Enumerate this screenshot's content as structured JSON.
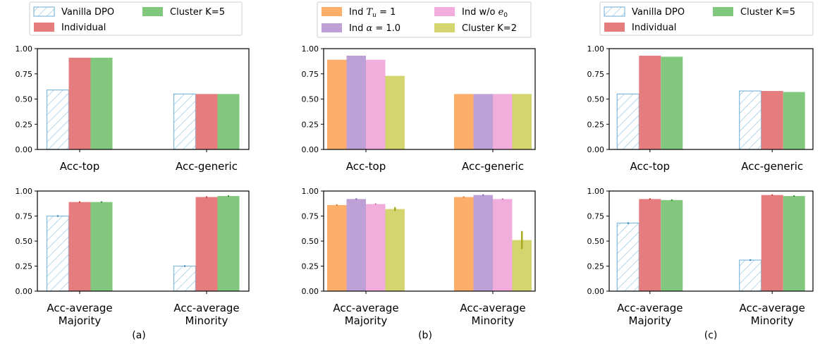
{
  "colors": {
    "vanilla": "#6baed6",
    "individual": "#e57c7e",
    "cluster5": "#81c77e",
    "ind_tu": "#fdae6b",
    "ind_alpha": "#bda0d6",
    "ind_wo_e0": "#f1aedc",
    "cluster2": "#d4d56e",
    "errbar_blue": "#1f77b4",
    "errbar_red": "#c0392b",
    "errbar_green": "#2e8b2e",
    "errbar_orange": "#d07a2b",
    "errbar_purple": "#7b5ea7",
    "errbar_pink": "#c56fa9",
    "errbar_olive": "#a9aa1f"
  },
  "panels": [
    {
      "label": "(a)",
      "legend": [
        "Vanilla DPO",
        "Cluster K=5",
        "Individual"
      ],
      "chart_data": [
        {
          "type": "bar",
          "categories": [
            [
              "Acc-top"
            ],
            [
              "Acc-generic"
            ]
          ],
          "series": [
            {
              "name": "Vanilla DPO",
              "values": [
                0.59,
                0.55
              ],
              "hatch": true
            },
            {
              "name": "Individual",
              "values": [
                0.91,
                0.55
              ]
            },
            {
              "name": "Cluster K=5",
              "values": [
                0.91,
                0.55
              ]
            }
          ],
          "ylim": [
            0,
            1
          ],
          "yticks": [
            "0.00",
            "0.25",
            "0.50",
            "0.75",
            "1.00"
          ]
        },
        {
          "type": "bar",
          "categories": [
            [
              "Acc-average",
              "Majority"
            ],
            [
              "Acc-average",
              "Minority"
            ]
          ],
          "series": [
            {
              "name": "Vanilla DPO",
              "values": [
                0.75,
                0.25
              ],
              "err": [
                0.006,
                0.005
              ],
              "hatch": true
            },
            {
              "name": "Individual",
              "values": [
                0.89,
                0.94
              ],
              "err": [
                0.004,
                0.003
              ]
            },
            {
              "name": "Cluster K=5",
              "values": [
                0.89,
                0.95
              ],
              "err": [
                0.004,
                0.003
              ]
            }
          ],
          "ylim": [
            0,
            1
          ],
          "yticks": [
            "0.00",
            "0.25",
            "0.50",
            "0.75",
            "1.00"
          ]
        }
      ]
    },
    {
      "label": "(b)",
      "legend": [
        "Ind T_u=1",
        "Ind w/o e_0",
        "Ind α=1.0",
        "Cluster K=2"
      ],
      "chart_data": [
        {
          "type": "bar",
          "categories": [
            [
              "Acc-top"
            ],
            [
              "Acc-generic"
            ]
          ],
          "series": [
            {
              "name": "Ind T_u=1",
              "values": [
                0.89,
                0.55
              ]
            },
            {
              "name": "Ind α=1.0",
              "values": [
                0.93,
                0.55
              ]
            },
            {
              "name": "Ind w/o e_0",
              "values": [
                0.89,
                0.55
              ]
            },
            {
              "name": "Cluster K=2",
              "values": [
                0.73,
                0.55
              ]
            }
          ],
          "ylim": [
            0,
            1
          ],
          "yticks": [
            "0.00",
            "0.25",
            "0.50",
            "0.75",
            "1.00"
          ]
        },
        {
          "type": "bar",
          "categories": [
            [
              "Acc-average",
              "Majority"
            ],
            [
              "Acc-average",
              "Minority"
            ]
          ],
          "series": [
            {
              "name": "Ind T_u=1",
              "values": [
                0.86,
                0.94
              ],
              "err": [
                0.004,
                0.003
              ]
            },
            {
              "name": "Ind α=1.0",
              "values": [
                0.92,
                0.96
              ],
              "err": [
                0.004,
                0.003
              ]
            },
            {
              "name": "Ind w/o e_0",
              "values": [
                0.87,
                0.92
              ],
              "err": [
                0.005,
                0.003
              ]
            },
            {
              "name": "Cluster K=2",
              "values": [
                0.82,
                0.51
              ],
              "err": [
                0.02,
                0.09
              ]
            }
          ],
          "ylim": [
            0,
            1
          ],
          "yticks": [
            "0.00",
            "0.25",
            "0.50",
            "0.75",
            "1.00"
          ]
        }
      ]
    },
    {
      "label": "(c)",
      "legend": [
        "Vanilla DPO",
        "Cluster K=5",
        "Individual"
      ],
      "chart_data": [
        {
          "type": "bar",
          "categories": [
            [
              "Acc-top"
            ],
            [
              "Acc-generic"
            ]
          ],
          "series": [
            {
              "name": "Vanilla DPO",
              "values": [
                0.55,
                0.58
              ],
              "hatch": true
            },
            {
              "name": "Individual",
              "values": [
                0.93,
                0.58
              ]
            },
            {
              "name": "Cluster K=5",
              "values": [
                0.92,
                0.57
              ]
            }
          ],
          "ylim": [
            0,
            1
          ],
          "yticks": [
            "0.00",
            "0.25",
            "0.50",
            "0.75",
            "1.00"
          ]
        },
        {
          "type": "bar",
          "categories": [
            [
              "Acc-average",
              "Majority"
            ],
            [
              "Acc-average",
              "Minority"
            ]
          ],
          "series": [
            {
              "name": "Vanilla DPO",
              "values": [
                0.68,
                0.31
              ],
              "err": [
                0.004,
                0.004
              ],
              "hatch": true
            },
            {
              "name": "Individual",
              "values": [
                0.92,
                0.96
              ],
              "err": [
                0.003,
                0.002
              ]
            },
            {
              "name": "Cluster K=5",
              "values": [
                0.91,
                0.95
              ],
              "err": [
                0.003,
                0.002
              ]
            }
          ],
          "ylim": [
            0,
            1
          ],
          "yticks": [
            "0.00",
            "0.25",
            "0.50",
            "0.75",
            "1.00"
          ]
        }
      ]
    }
  ]
}
